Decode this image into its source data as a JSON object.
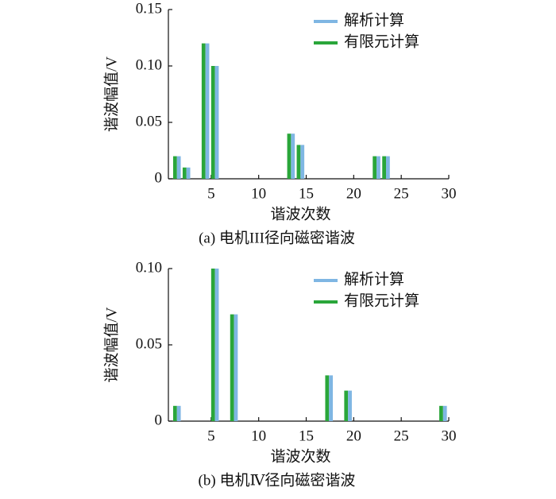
{
  "chart_data": [
    {
      "type": "bar",
      "caption": "(a) 电机III径向磁密谐波",
      "ylabel": "谐波幅值/V",
      "xlabel": "谐波次数",
      "x": [
        1,
        2,
        4,
        5,
        13,
        14,
        22,
        23
      ],
      "series": [
        {
          "name": "解析计算",
          "color": "#7fb6e3",
          "values": [
            0.02,
            0.01,
            0.12,
            0.1,
            0.04,
            0.03,
            0.02,
            0.02
          ]
        },
        {
          "name": "有限元计算",
          "color": "#2aa63a",
          "values": [
            0.02,
            0.01,
            0.12,
            0.1,
            0.04,
            0.03,
            0.02,
            0.02
          ]
        }
      ],
      "xlim": [
        0.5,
        30
      ],
      "xticks": [
        5,
        10,
        15,
        20,
        25,
        30
      ],
      "ylim": [
        0,
        0.15
      ],
      "yticks": [
        0,
        0.05,
        {
          "value": 0.1,
          "label": "0.10"
        },
        0.15
      ],
      "legend": "upper right"
    },
    {
      "type": "bar",
      "caption": "(b) 电机Ⅳ径向磁密谐波",
      "ylabel": "谐波幅值/V",
      "xlabel": "谐波次数",
      "x": [
        1,
        5,
        7,
        17,
        19,
        29
      ],
      "series": [
        {
          "name": "解析计算",
          "color": "#7fb6e3",
          "values": [
            0.01,
            0.1,
            0.07,
            0.03,
            0.02,
            0.01
          ]
        },
        {
          "name": "有限元计算",
          "color": "#2aa63a",
          "values": [
            0.01,
            0.1,
            0.07,
            0.03,
            0.02,
            0.01
          ]
        }
      ],
      "xlim": [
        0.5,
        30
      ],
      "xticks": [
        5,
        10,
        15,
        20,
        25,
        30
      ],
      "ylim": [
        0,
        0.1
      ],
      "yticks": [
        0,
        0.05,
        {
          "value": 0.1,
          "label": "0.10"
        }
      ],
      "legend": "upper right"
    }
  ]
}
